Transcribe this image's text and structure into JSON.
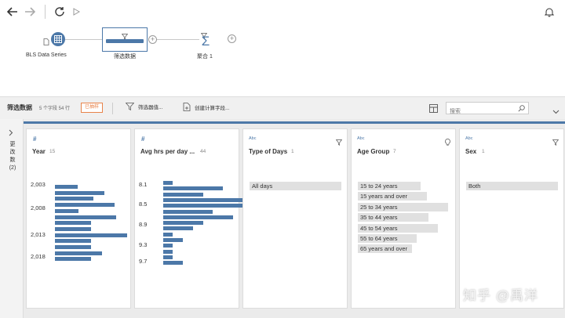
{
  "toolbar": {
    "back_icon": "arrow-left-icon",
    "forward_icon": "arrow-right-icon",
    "refresh_icon": "refresh-icon",
    "run_icon": "play-icon",
    "bell_icon": "bell-icon"
  },
  "flow": {
    "source_label": "BLS Data Series",
    "clean_label": "筛选数据",
    "agg_label": "聚合 1"
  },
  "step": {
    "title": "筛选数据",
    "meta": "5 个字段  54 行",
    "badge": "已抽样",
    "filter_label": "筛选器值...",
    "calc_label": "创建计算字段...",
    "search_placeholder": "搜索"
  },
  "sidebar": {
    "changes_label": "更改数(2)"
  },
  "accent_color": "#4c78a8",
  "badge_color": "#e8834a",
  "cards": [
    {
      "type": "#",
      "title": "Year",
      "count": "15",
      "ticks": [
        "2,003",
        "2,008",
        "2,013",
        "2,018"
      ],
      "bars": [
        0.31,
        0.66,
        0.52,
        0.8,
        0.32,
        0.82,
        0.48,
        0.48,
        0.97,
        0.48,
        0.48,
        0.63,
        0.48
      ]
    },
    {
      "type": "#",
      "title": "Avg hrs per day ...",
      "count": "44",
      "ticks": [
        "8.1",
        "8.5",
        "8.9",
        "9.3",
        "9.7"
      ],
      "bars": [
        0.12,
        0.73,
        0.49,
        0.98,
        0.98,
        0.61,
        0.86,
        0.49,
        0.37,
        0.12,
        0.24,
        0.12,
        0.12,
        0.12,
        0.24
      ]
    },
    {
      "type": "Abc",
      "title": "Type of Days",
      "count": "1",
      "categories": [
        {
          "label": "All days",
          "fraction": 1.0
        }
      ]
    },
    {
      "type": "Abc",
      "title": "Age Group",
      "count": "7",
      "categories": [
        {
          "label": "15 to 24 years",
          "fraction": 0.68
        },
        {
          "label": "15 years and over",
          "fraction": 0.75
        },
        {
          "label": "25 to 34 years",
          "fraction": 0.98
        },
        {
          "label": "35 to 44 years",
          "fraction": 0.77
        },
        {
          "label": "45 to 54 years",
          "fraction": 0.87
        },
        {
          "label": "55 to 64 years",
          "fraction": 0.64
        },
        {
          "label": "65 years and over",
          "fraction": 0.59
        }
      ]
    },
    {
      "type": "Abc",
      "title": "Sex",
      "count": "1",
      "categories": [
        {
          "label": "Both",
          "fraction": 1.0
        }
      ]
    }
  ],
  "watermark": "知乎 @禹洋"
}
